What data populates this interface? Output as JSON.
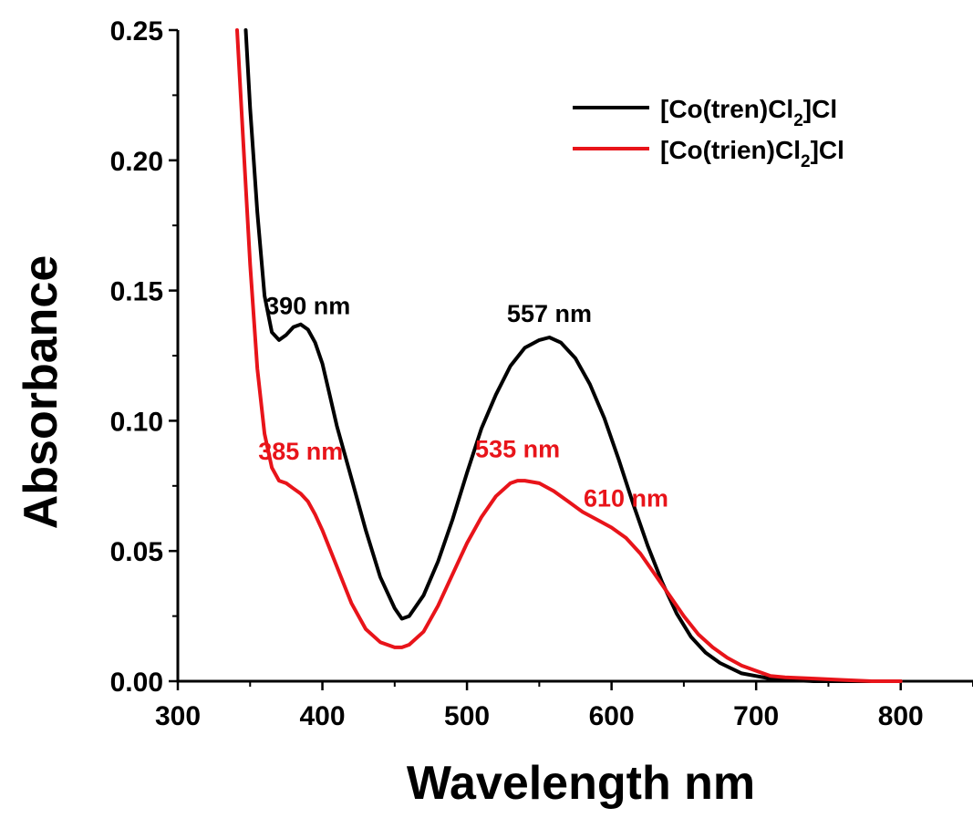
{
  "chart_data": {
    "type": "line",
    "xlabel": "Wavelength nm",
    "ylabel": "Absorbance",
    "xlim": [
      300,
      850
    ],
    "ylim": [
      0,
      0.25
    ],
    "x_ticks": [
      "300",
      "400",
      "500",
      "600",
      "700",
      "800"
    ],
    "x_tick_values": [
      300,
      400,
      500,
      600,
      700,
      800
    ],
    "y_ticks": [
      "0.00",
      "0.05",
      "0.10",
      "0.15",
      "0.20",
      "0.25"
    ],
    "y_tick_values": [
      0,
      0.05,
      0.1,
      0.15,
      0.2,
      0.25
    ],
    "grid": false,
    "legend": "top-right",
    "series": [
      {
        "name": "[Co(tren)Cl2]Cl",
        "name_parts": {
          "pre": "[Co(tren)Cl",
          "sub": "2",
          "post": "]Cl"
        },
        "color": "#000000",
        "x": [
          347,
          350,
          355,
          360,
          365,
          370,
          375,
          380,
          385,
          390,
          395,
          400,
          405,
          410,
          420,
          430,
          440,
          450,
          455,
          460,
          470,
          480,
          490,
          500,
          510,
          520,
          530,
          540,
          550,
          557,
          565,
          575,
          585,
          595,
          605,
          615,
          625,
          635,
          645,
          655,
          665,
          675,
          690,
          700,
          710,
          720,
          740,
          760,
          780,
          800
        ],
        "y": [
          0.25,
          0.22,
          0.18,
          0.148,
          0.134,
          0.131,
          0.133,
          0.136,
          0.137,
          0.135,
          0.13,
          0.122,
          0.11,
          0.098,
          0.078,
          0.058,
          0.04,
          0.028,
          0.024,
          0.025,
          0.033,
          0.046,
          0.062,
          0.08,
          0.097,
          0.11,
          0.121,
          0.128,
          0.131,
          0.132,
          0.13,
          0.124,
          0.114,
          0.101,
          0.085,
          0.068,
          0.052,
          0.038,
          0.026,
          0.017,
          0.011,
          0.007,
          0.003,
          0.002,
          0.001,
          0.0005,
          0.0,
          0.0,
          0.0,
          0.0
        ]
      },
      {
        "name": "[Co(trien)Cl2]Cl",
        "name_parts": {
          "pre": "[Co(trien)Cl",
          "sub": "2",
          "post": "]Cl"
        },
        "color": "#e8141a",
        "x": [
          341,
          345,
          350,
          355,
          360,
          365,
          370,
          375,
          380,
          385,
          390,
          395,
          400,
          410,
          420,
          430,
          440,
          450,
          455,
          460,
          470,
          480,
          490,
          500,
          510,
          520,
          530,
          535,
          540,
          550,
          560,
          570,
          580,
          590,
          600,
          610,
          620,
          630,
          640,
          650,
          660,
          670,
          680,
          690,
          700,
          710,
          720,
          740,
          760,
          780,
          800
        ],
        "y": [
          0.25,
          0.21,
          0.16,
          0.12,
          0.095,
          0.082,
          0.077,
          0.076,
          0.074,
          0.072,
          0.069,
          0.064,
          0.058,
          0.044,
          0.03,
          0.02,
          0.015,
          0.013,
          0.013,
          0.014,
          0.019,
          0.029,
          0.041,
          0.053,
          0.063,
          0.071,
          0.076,
          0.077,
          0.077,
          0.076,
          0.073,
          0.069,
          0.065,
          0.062,
          0.059,
          0.055,
          0.049,
          0.041,
          0.033,
          0.025,
          0.018,
          0.013,
          0.009,
          0.006,
          0.004,
          0.002,
          0.0015,
          0.001,
          0.0005,
          0.0,
          0.0
        ]
      }
    ],
    "annotations": [
      {
        "text": "390 nm",
        "x": 390,
        "y": 0.141,
        "color": "#000000"
      },
      {
        "text": "557 nm",
        "x": 557,
        "y": 0.138,
        "color": "#000000"
      },
      {
        "text": "385 nm",
        "x": 385,
        "y": 0.085,
        "color": "#e8141a"
      },
      {
        "text": "535 nm",
        "x": 535,
        "y": 0.086,
        "color": "#e8141a"
      },
      {
        "text": "610 nm",
        "x": 610,
        "y": 0.067,
        "color": "#e8141a"
      }
    ]
  }
}
